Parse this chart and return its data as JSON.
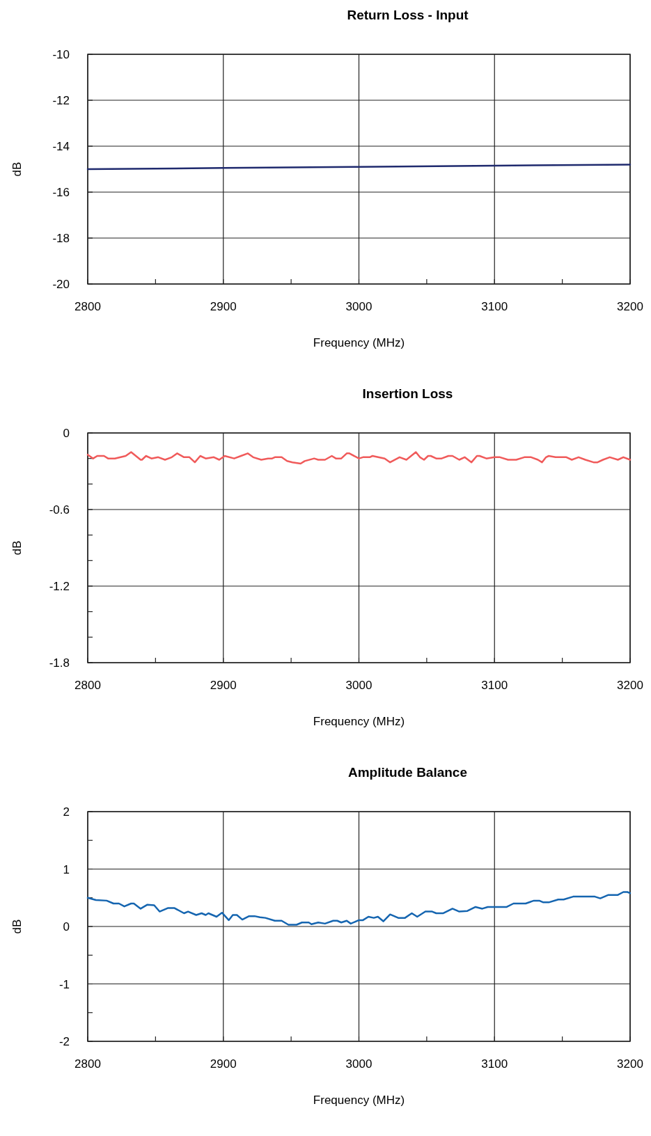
{
  "chart_data": [
    {
      "type": "line",
      "title": "Return Loss - Input",
      "xlabel": "Frequency (MHz)",
      "ylabel": "dB",
      "xlim": [
        2800,
        3200
      ],
      "ylim": [
        -20,
        -10
      ],
      "xticks": [
        2800,
        {
          "value": 2850,
          "label": null
        },
        2900,
        {
          "value": 2950,
          "label": null
        },
        3000,
        {
          "value": 3050,
          "label": null
        },
        3100,
        {
          "value": 3150,
          "label": null
        },
        3200
      ],
      "yticks": [
        -20,
        -18,
        -16,
        -14,
        -12,
        -10
      ],
      "grid": true,
      "marker": "none",
      "line_style": "solid",
      "series": [
        {
          "color": "#1f2a6e",
          "x": [
            2800,
            2900,
            3000,
            3100,
            3200
          ],
          "values": [
            -15,
            -14.95,
            -14.9,
            -14.85,
            -14.8
          ]
        }
      ]
    },
    {
      "type": "line",
      "title": "Insertion Loss",
      "xlabel": "Frequency (MHz)",
      "ylabel": "dB",
      "xlim": [
        2800,
        3200
      ],
      "ylim": [
        -1.8,
        0
      ],
      "xticks": [
        2800,
        {
          "value": 2850,
          "label": null
        },
        2900,
        {
          "value": 2950,
          "label": null
        },
        3000,
        {
          "value": 3050,
          "label": null
        },
        3100,
        {
          "value": 3150,
          "label": null
        },
        3200
      ],
      "yticks": [
        -1.8,
        {
          "value": -1.6,
          "label": null
        },
        {
          "value": -1.4,
          "label": null
        },
        -1.2,
        {
          "value": -1,
          "label": null
        },
        {
          "value": -0.8,
          "label": null
        },
        -0.6,
        {
          "value": -0.4,
          "label": null
        },
        {
          "value": -0.2,
          "label": null
        },
        0
      ],
      "grid": true,
      "marker": "none",
      "line_style": "solid",
      "series": [
        {
          "color": "#f05a5a",
          "x": [
            2800,
            2804,
            2807,
            2812,
            2815,
            2820,
            2828,
            2832,
            2839,
            2840,
            2843,
            2847,
            2852,
            2857,
            2862,
            2866,
            2871,
            2875,
            2879,
            2883,
            2887,
            2893,
            2897,
            2901,
            2908,
            2913,
            2918,
            2922,
            2928,
            2933,
            2936,
            2938,
            2943,
            2947,
            2951,
            2957,
            2960,
            2967,
            2970,
            2975,
            2980,
            2983,
            2987,
            2991,
            2993,
            3000,
            3003,
            3008,
            3010,
            3019,
            3023,
            3030,
            3035,
            3042,
            3045,
            3048,
            3051,
            3053,
            3057,
            3061,
            3066,
            3069,
            3074,
            3078,
            3083,
            3087,
            3089,
            3094,
            3100,
            3104,
            3110,
            3116,
            3122,
            3127,
            3132,
            3135,
            3138,
            3140,
            3145,
            3153,
            3157,
            3162,
            3167,
            3173,
            3176,
            3180,
            3185,
            3191,
            3195,
            3200
          ],
          "values": [
            -0.17,
            -0.2,
            -0.18,
            -0.18,
            -0.2,
            -0.2,
            -0.18,
            -0.15,
            -0.21,
            -0.21,
            -0.18,
            -0.2,
            -0.19,
            -0.21,
            -0.19,
            -0.16,
            -0.19,
            -0.19,
            -0.23,
            -0.18,
            -0.2,
            -0.19,
            -0.21,
            -0.18,
            -0.2,
            -0.18,
            -0.16,
            -0.19,
            -0.21,
            -0.2,
            -0.2,
            -0.19,
            -0.19,
            -0.22,
            -0.23,
            -0.24,
            -0.22,
            -0.2,
            -0.21,
            -0.21,
            -0.18,
            -0.2,
            -0.2,
            -0.16,
            -0.16,
            -0.2,
            -0.19,
            -0.19,
            -0.18,
            -0.2,
            -0.23,
            -0.19,
            -0.21,
            -0.15,
            -0.19,
            -0.21,
            -0.18,
            -0.18,
            -0.2,
            -0.2,
            -0.18,
            -0.18,
            -0.21,
            -0.19,
            -0.23,
            -0.18,
            -0.18,
            -0.2,
            -0.19,
            -0.19,
            -0.21,
            -0.21,
            -0.19,
            -0.19,
            -0.21,
            -0.23,
            -0.19,
            -0.18,
            -0.19,
            -0.19,
            -0.21,
            -0.19,
            -0.21,
            -0.23,
            -0.23,
            -0.21,
            -0.19,
            -0.21,
            -0.19,
            -0.21
          ]
        }
      ]
    },
    {
      "type": "line",
      "title": "Amplitude Balance",
      "xlabel": "Frequency (MHz)",
      "ylabel": "dB",
      "xlim": [
        2800,
        3200
      ],
      "ylim": [
        -2,
        2
      ],
      "xticks": [
        2800,
        {
          "value": 2850,
          "label": null
        },
        2900,
        {
          "value": 2950,
          "label": null
        },
        3000,
        {
          "value": 3050,
          "label": null
        },
        3100,
        {
          "value": 3150,
          "label": null
        },
        3200
      ],
      "yticks": [
        -2,
        {
          "value": -1.5,
          "label": null
        },
        -1,
        {
          "value": -0.5,
          "label": null
        },
        0,
        {
          "value": 0.5,
          "label": null
        },
        1,
        {
          "value": 1.5,
          "label": null
        },
        2
      ],
      "grid": true,
      "marker": "none",
      "line_style": "solid",
      "series": [
        {
          "color": "#1565b0",
          "x": [
            2800,
            2806,
            2814,
            2819,
            2823,
            2827,
            2832,
            2834,
            2839,
            2844,
            2849,
            2853,
            2859,
            2864,
            2871,
            2874,
            2880,
            2884,
            2887,
            2889,
            2895,
            2899,
            2904,
            2907,
            2910,
            2914,
            2919,
            2923,
            2927,
            2931,
            2938,
            2943,
            2948,
            2954,
            2958,
            2963,
            2965,
            2970,
            2975,
            2981,
            2984,
            2987,
            2991,
            2994,
            3000,
            3003,
            3007,
            3011,
            3014,
            3018,
            3023,
            3029,
            3034,
            3039,
            3043,
            3049,
            3054,
            3057,
            3062,
            3069,
            3074,
            3080,
            3086,
            3091,
            3095,
            3109,
            3114,
            3123,
            3129,
            3133,
            3136,
            3140,
            3147,
            3151,
            3158,
            3174,
            3178,
            3184,
            3191,
            3195,
            3198,
            3200
          ],
          "values": [
            0.5,
            0.46,
            0.45,
            0.4,
            0.4,
            0.35,
            0.4,
            0.4,
            0.31,
            0.38,
            0.37,
            0.26,
            0.32,
            0.32,
            0.23,
            0.26,
            0.2,
            0.23,
            0.2,
            0.23,
            0.17,
            0.24,
            0.11,
            0.2,
            0.2,
            0.12,
            0.18,
            0.18,
            0.16,
            0.15,
            0.1,
            0.1,
            0.03,
            0.03,
            0.07,
            0.07,
            0.04,
            0.07,
            0.05,
            0.1,
            0.1,
            0.07,
            0.1,
            0.05,
            0.11,
            0.11,
            0.17,
            0.15,
            0.17,
            0.09,
            0.21,
            0.15,
            0.15,
            0.23,
            0.17,
            0.26,
            0.26,
            0.23,
            0.23,
            0.31,
            0.26,
            0.27,
            0.34,
            0.31,
            0.34,
            0.34,
            0.4,
            0.4,
            0.45,
            0.45,
            0.42,
            0.42,
            0.47,
            0.47,
            0.52,
            0.52,
            0.49,
            0.55,
            0.55,
            0.6,
            0.6,
            0.58
          ]
        }
      ]
    }
  ]
}
